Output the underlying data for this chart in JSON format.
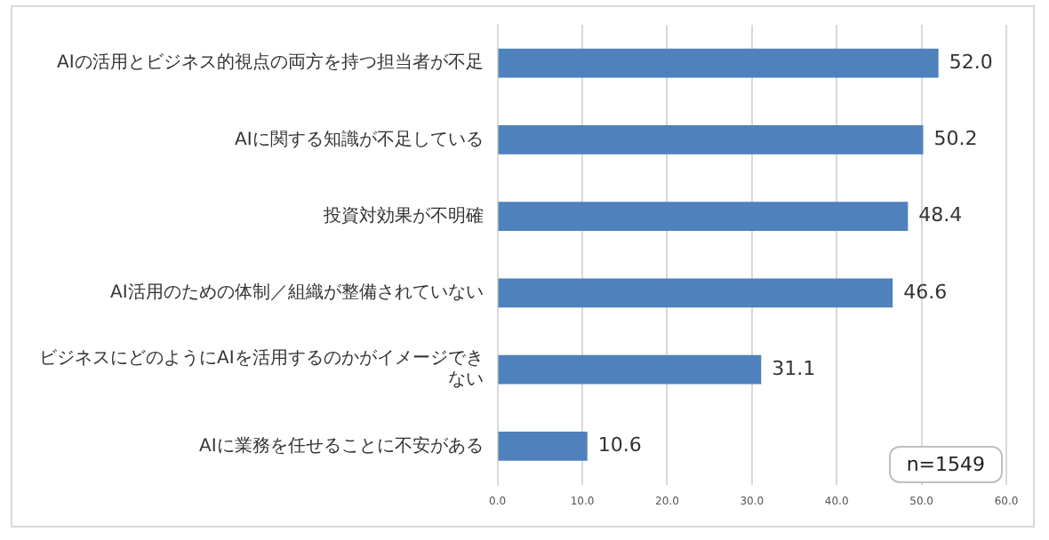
{
  "chart_data": {
    "type": "bar",
    "orientation": "horizontal",
    "categories": [
      "AIの活用とビジネス的視点の両方を持つ担当者が不足",
      "AIに関する知識が不足している",
      "投資対効果が不明確",
      "AI活用のための体制／組織が整備されていない",
      "ビジネスにどのようにAIを活用するのかがイメージできない",
      "AIに業務を任せることに不安がある"
    ],
    "values": [
      52.0,
      50.2,
      48.4,
      46.6,
      31.1,
      10.6
    ],
    "value_labels": [
      "52.0",
      "50.2",
      "48.4",
      "46.6",
      "31.1",
      "10.6"
    ],
    "color": "#4f81bd",
    "xlim": [
      0,
      60
    ],
    "xticks": [
      {
        "value": 0,
        "label": "0.0"
      },
      {
        "value": 10,
        "label": "10.0"
      },
      {
        "value": 20,
        "label": "20.0"
      },
      {
        "value": 30,
        "label": "30.0"
      },
      {
        "value": 40,
        "label": "40.0"
      },
      {
        "value": 50,
        "label": "50.0"
      },
      {
        "value": 60,
        "label": "60.0"
      }
    ],
    "grid": "x",
    "legend": false,
    "annotations": [
      "n=1549"
    ]
  }
}
